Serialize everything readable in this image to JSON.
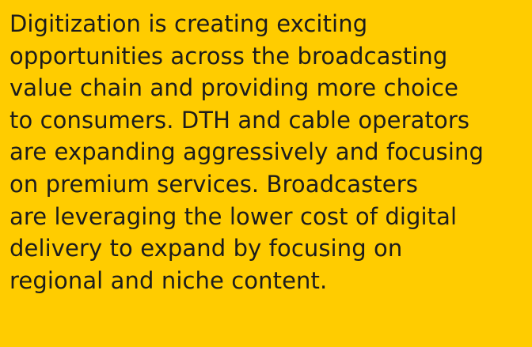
{
  "paragraph": {
    "lines": [
      "Digitization is creating exciting",
      "opportunities across the broadcasting",
      "value chain and providing more choice",
      "to consumers. DTH and cable operators",
      "are expanding aggressively and focusing",
      "on premium services. Broadcasters",
      "are leveraging the lower cost of digital",
      "delivery to expand by focusing on",
      "regional and niche content."
    ]
  }
}
